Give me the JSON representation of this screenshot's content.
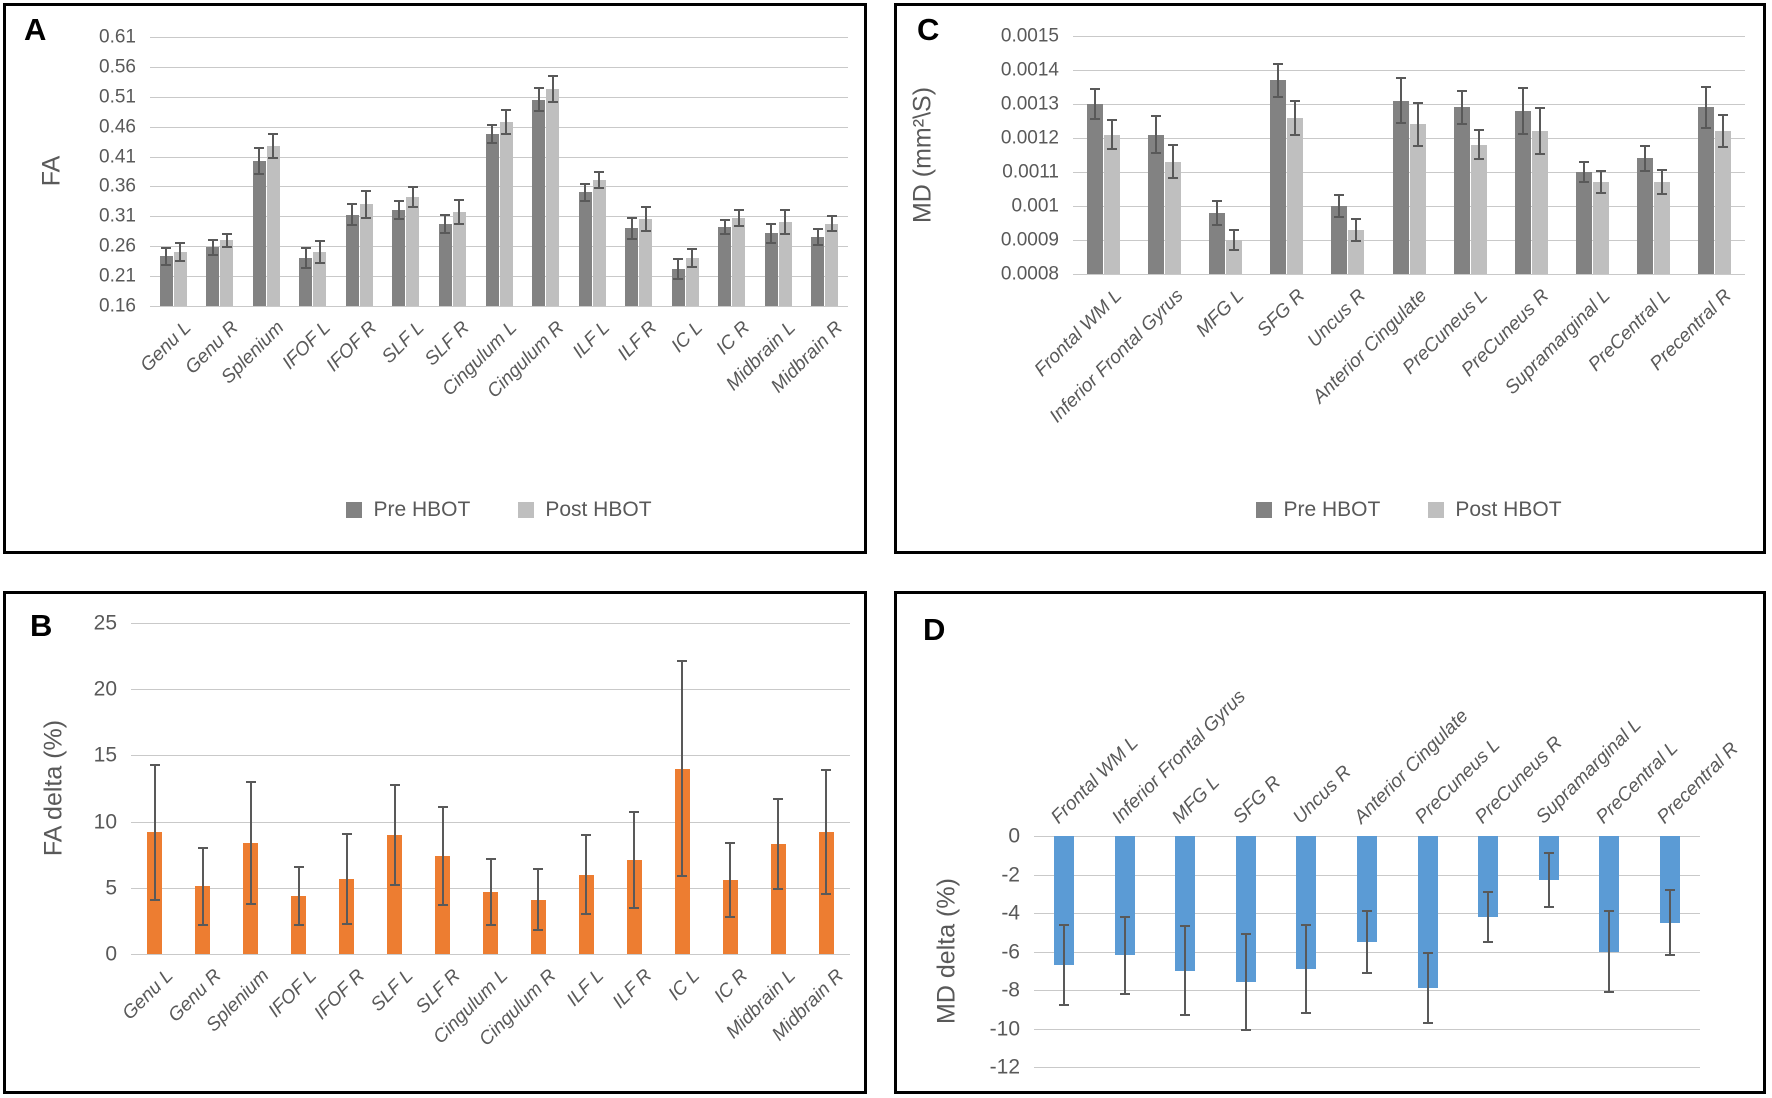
{
  "colors": {
    "pre_hbot": "#828282",
    "post_hbot": "#bfbfbf",
    "fa_delta_bar": "#ED7D31",
    "md_delta_bar": "#5B9BD5",
    "error_bar": "#595959",
    "gridline": "#c9c9c9",
    "axis_text": "#595959"
  },
  "chart_data": [
    {
      "panel": "A",
      "type": "bar",
      "ylabel": "FA",
      "ylim": [
        0.16,
        0.61
      ],
      "grid": true,
      "legend_position": "bottom",
      "ytick_labels": [
        "0.61",
        "0.56",
        "0.51",
        "0.46",
        "0.41",
        "0.36",
        "0.31",
        "0.26",
        "0.21",
        "0.16"
      ],
      "ytick_values": [
        0.61,
        0.56,
        0.51,
        0.46,
        0.41,
        0.36,
        0.31,
        0.26,
        0.21,
        0.16
      ],
      "categories": [
        "Genu L",
        "Genu R",
        "Splenium",
        "IFOF L",
        "IFOF R",
        "SLF L",
        "SLF R",
        "Cingulum L",
        "Cingulum R",
        "ILF L",
        "ILF R",
        "IC L",
        "IC R",
        "Midbrain L",
        "Midbrain R"
      ],
      "series": [
        {
          "name": "Pre HBOT",
          "color": "#828282",
          "values": [
            0.243,
            0.258,
            0.402,
            0.24,
            0.313,
            0.32,
            0.297,
            0.448,
            0.505,
            0.35,
            0.29,
            0.222,
            0.292,
            0.282,
            0.275
          ],
          "errors": [
            0.014,
            0.012,
            0.022,
            0.017,
            0.018,
            0.015,
            0.015,
            0.015,
            0.019,
            0.014,
            0.018,
            0.016,
            0.012,
            0.016,
            0.013
          ]
        },
        {
          "name": "Post HBOT",
          "color": "#bfbfbf",
          "values": [
            0.251,
            0.27,
            0.428,
            0.25,
            0.33,
            0.342,
            0.318,
            0.468,
            0.523,
            0.371,
            0.306,
            0.241,
            0.307,
            0.3,
            0.298
          ],
          "errors": [
            0.015,
            0.011,
            0.02,
            0.018,
            0.022,
            0.017,
            0.02,
            0.02,
            0.021,
            0.013,
            0.02,
            0.015,
            0.013,
            0.02,
            0.012
          ]
        }
      ]
    },
    {
      "panel": "B",
      "type": "bar",
      "ylabel": "FA delta (%)",
      "ylim": [
        0,
        25
      ],
      "grid": true,
      "ytick_labels": [
        "25",
        "20",
        "15",
        "10",
        "5",
        "0"
      ],
      "ytick_values": [
        25,
        20,
        15,
        10,
        5,
        0
      ],
      "categories": [
        "Genu L",
        "Genu R",
        "Splenium",
        "IFOF L",
        "IFOF R",
        "SLF L",
        "SLF R",
        "Cingulum L",
        "Cingulum R",
        "ILF L",
        "ILF R",
        "IC L",
        "IC R",
        "Midbrain L",
        "Midbrain R"
      ],
      "series": [
        {
          "name": "FA delta (%)",
          "color": "#ED7D31",
          "values": [
            9.2,
            5.1,
            8.4,
            4.4,
            5.7,
            9.0,
            7.4,
            4.7,
            4.1,
            6.0,
            7.1,
            14.0,
            5.6,
            8.3,
            9.2
          ],
          "errors": [
            5.1,
            2.9,
            4.6,
            2.2,
            3.4,
            3.8,
            3.7,
            2.5,
            2.3,
            3.0,
            3.6,
            8.1,
            2.8,
            3.4,
            4.7
          ]
        }
      ]
    },
    {
      "panel": "C",
      "type": "bar",
      "ylabel": "MD (mm²\\S)",
      "ylim": [
        0.0008,
        0.0015
      ],
      "grid": true,
      "legend_position": "bottom",
      "ytick_labels": [
        "0.0015",
        "0.0014",
        "0.0013",
        "0.0012",
        "0.0011",
        "0.001",
        "0.0009",
        "0.0008"
      ],
      "ytick_values": [
        0.0015,
        0.0014,
        0.0013,
        0.0012,
        0.0011,
        0.001,
        0.0009,
        0.0008
      ],
      "categories": [
        "Frontal WM L",
        "Inferior Frontal Gyrus",
        "MFG L",
        "SFG R",
        "Uncus R",
        "Anterior Cingulate",
        "PreCuneus L",
        "PreCuneus R",
        "Supramarginal L",
        "PreCentral L",
        "Precentral R"
      ],
      "series": [
        {
          "name": "Pre HBOT",
          "color": "#828282",
          "values": [
            0.0013,
            0.00121,
            0.00098,
            0.00137,
            0.001,
            0.00131,
            0.00129,
            0.00128,
            0.0011,
            0.00114,
            0.00129
          ],
          "errors": [
            4.5e-05,
            5.5e-05,
            3.5e-05,
            4.8e-05,
            3.3e-05,
            6.7e-05,
            4.8e-05,
            6.8e-05,
            3e-05,
            3.6e-05,
            6e-05
          ]
        },
        {
          "name": "Post HBOT",
          "color": "#bfbfbf",
          "values": [
            0.00121,
            0.00113,
            0.0009,
            0.00126,
            0.00093,
            0.00124,
            0.00118,
            0.00122,
            0.00107,
            0.00107,
            0.00122
          ],
          "errors": [
            4.2e-05,
            4.8e-05,
            3e-05,
            5e-05,
            3.2e-05,
            6.3e-05,
            4.3e-05,
            6.8e-05,
            3.2e-05,
            3.5e-05,
            4.7e-05
          ]
        }
      ]
    },
    {
      "panel": "D",
      "type": "bar",
      "ylabel": "MD delta (%)",
      "ylim": [
        -12,
        0
      ],
      "grid": true,
      "category_label_position": "top",
      "ytick_labels": [
        "0",
        "-2",
        "-4",
        "-6",
        "-8",
        "-10",
        "-12"
      ],
      "ytick_values": [
        0,
        -2,
        -4,
        -6,
        -8,
        -10,
        -12
      ],
      "categories": [
        "Frontal WM L",
        "Inferior Frontal Gyrus",
        "MFG L",
        "SFG R",
        "Uncus R",
        "Anterior Cingulate",
        "PreCuneus L",
        "PreCuneus R",
        "Supramarginal L",
        "PreCentral L",
        "Precentral R"
      ],
      "series": [
        {
          "name": "MD delta (%)",
          "color": "#5B9BD5",
          "values": [
            -6.7,
            -6.2,
            -7.0,
            -7.6,
            -6.9,
            -5.5,
            -7.9,
            -4.2,
            -2.3,
            -6.0,
            -4.5
          ],
          "errors": [
            2.1,
            2.0,
            2.3,
            2.5,
            2.3,
            1.6,
            1.8,
            1.3,
            1.4,
            2.1,
            1.7
          ]
        }
      ]
    }
  ]
}
